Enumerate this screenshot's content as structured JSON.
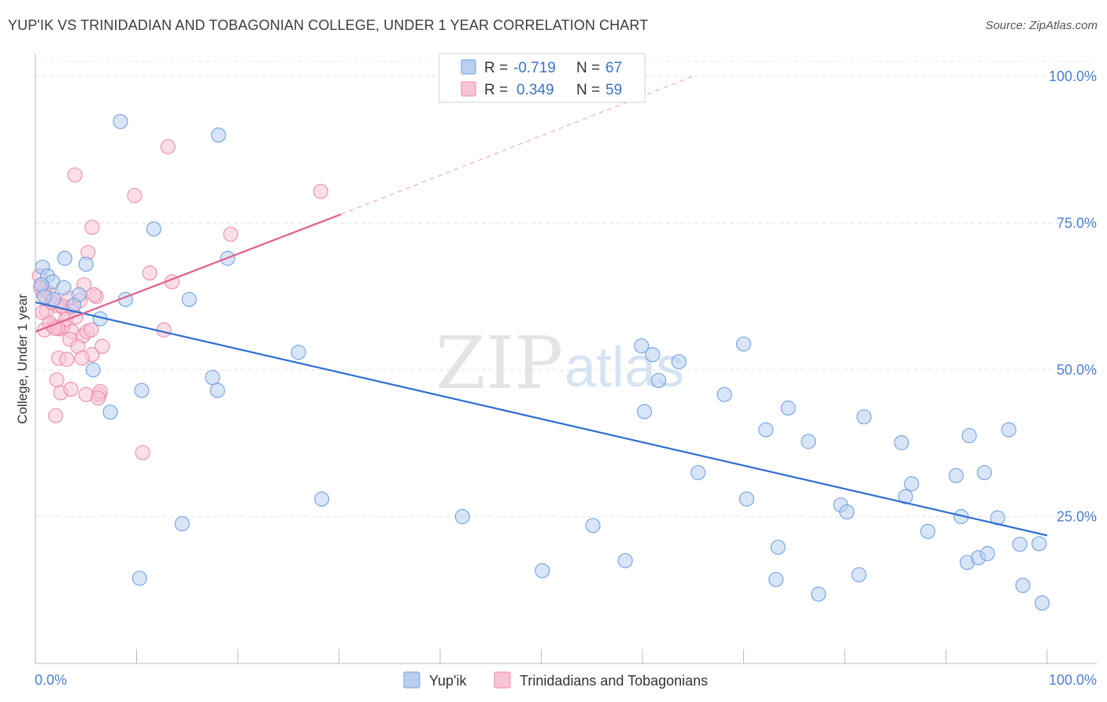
{
  "header": {
    "title": "YUP'IK VS TRINIDADIAN AND TOBAGONIAN COLLEGE, UNDER 1 YEAR CORRELATION CHART",
    "source": "Source: ZipAtlas.com"
  },
  "watermark": {
    "zip": "ZIP",
    "atlas": "atlas"
  },
  "chart_data": {
    "type": "scatter",
    "title": "YUP'IK VS TRINIDADIAN AND TOBAGONIAN COLLEGE, UNDER 1 YEAR CORRELATION CHART",
    "xlabel": "",
    "ylabel": "College, Under 1 year",
    "xlim": [
      0,
      100
    ],
    "ylim": [
      0,
      100
    ],
    "x_tick_labels": [
      "0.0%",
      "100.0%"
    ],
    "y_ticks": [
      25,
      50,
      75,
      100
    ],
    "y_tick_labels": [
      "25.0%",
      "50.0%",
      "75.0%",
      "100.0%"
    ],
    "legend_position": "top-center",
    "series": [
      {
        "name": "Yup'ik",
        "color": "#6f9fe0",
        "fill": "#b8cff0",
        "line_color": "#2f6fd0",
        "r_label": "R =",
        "r_value": "-0.719",
        "n_label": "N =",
        "n_value": "67",
        "trend": {
          "x": [
            0,
            100
          ],
          "y": [
            61.5,
            21.8
          ]
        },
        "points": [
          [
            0.7,
            67.5
          ],
          [
            1.2,
            66
          ],
          [
            1.7,
            65
          ],
          [
            0.6,
            64.5
          ],
          [
            2.9,
            69
          ],
          [
            5,
            68
          ],
          [
            8.4,
            92.3
          ],
          [
            18.1,
            90
          ],
          [
            11.7,
            74
          ],
          [
            19,
            69
          ],
          [
            2.8,
            64
          ],
          [
            4.3,
            62.8
          ],
          [
            1.8,
            62
          ],
          [
            3.8,
            61
          ],
          [
            8.9,
            62
          ],
          [
            15.2,
            62
          ],
          [
            6.4,
            58.7
          ],
          [
            5.7,
            50
          ],
          [
            10.5,
            46.5
          ],
          [
            17.5,
            48.7
          ],
          [
            18,
            46.5
          ],
          [
            7.4,
            42.8
          ],
          [
            26,
            53
          ],
          [
            10.3,
            14.5
          ],
          [
            14.5,
            23.8
          ],
          [
            28.3,
            28
          ],
          [
            42.2,
            25
          ],
          [
            50.1,
            15.8
          ],
          [
            55.1,
            23.5
          ],
          [
            58.3,
            17.5
          ],
          [
            59.9,
            54.1
          ],
          [
            60.2,
            42.9
          ],
          [
            61,
            52.6
          ],
          [
            61.6,
            48.2
          ],
          [
            63.6,
            51.4
          ],
          [
            65.5,
            32.5
          ],
          [
            68.1,
            45.8
          ],
          [
            70,
            54.4
          ],
          [
            70.3,
            28
          ],
          [
            72.2,
            39.8
          ],
          [
            73.2,
            14.3
          ],
          [
            73.4,
            19.8
          ],
          [
            74.4,
            43.5
          ],
          [
            76.4,
            37.8
          ],
          [
            77.4,
            11.8
          ],
          [
            79.6,
            27
          ],
          [
            80.2,
            25.8
          ],
          [
            81.4,
            15.1
          ],
          [
            81.9,
            42
          ],
          [
            85.6,
            37.6
          ],
          [
            86,
            28.4
          ],
          [
            86.6,
            30.6
          ],
          [
            88.2,
            22.5
          ],
          [
            91,
            32
          ],
          [
            91.5,
            25
          ],
          [
            92.1,
            17.2
          ],
          [
            93.2,
            18
          ],
          [
            94.1,
            18.7
          ],
          [
            93.8,
            32.5
          ],
          [
            95.1,
            24.8
          ],
          [
            96.2,
            39.8
          ],
          [
            97.3,
            20.3
          ],
          [
            97.6,
            13.3
          ],
          [
            99.2,
            20.4
          ],
          [
            99.5,
            10.3
          ],
          [
            92.3,
            38.8
          ],
          [
            0.9,
            62.5
          ]
        ]
      },
      {
        "name": "Trinidadians and Tobagonians",
        "color": "#ec8aab",
        "fill": "#f8c4d5",
        "line_color": "#e0608c",
        "r_label": "R =",
        "r_value": "0.349",
        "n_label": "N =",
        "n_value": "59",
        "trend": {
          "x": [
            0,
            30.2
          ],
          "y": [
            56.5,
            76.5
          ]
        },
        "trend_dashed": {
          "x": [
            30.2,
            65
          ],
          "y": [
            76.5,
            100
          ]
        },
        "points": [
          [
            0.4,
            66
          ],
          [
            0.6,
            64.5
          ],
          [
            0.9,
            63.5
          ],
          [
            1.3,
            63.2
          ],
          [
            0.8,
            62.8
          ],
          [
            1.8,
            62
          ],
          [
            2.1,
            61
          ],
          [
            2.8,
            60.5
          ],
          [
            1.1,
            60
          ],
          [
            3.2,
            59.5
          ],
          [
            1.7,
            57.5
          ],
          [
            2.4,
            57
          ],
          [
            0.9,
            56.8
          ],
          [
            3.6,
            56.5
          ],
          [
            4.7,
            55.8
          ],
          [
            5.1,
            56.5
          ],
          [
            5.5,
            56.8
          ],
          [
            3.4,
            55.2
          ],
          [
            4.2,
            54
          ],
          [
            2.3,
            52
          ],
          [
            3.1,
            51.8
          ],
          [
            6.6,
            54
          ],
          [
            5.6,
            52.6
          ],
          [
            4.6,
            52
          ],
          [
            2.1,
            48.3
          ],
          [
            2.5,
            46.1
          ],
          [
            3.5,
            46.7
          ],
          [
            5,
            45.8
          ],
          [
            6.3,
            45.8
          ],
          [
            6.4,
            46.3
          ],
          [
            2,
            42.2
          ],
          [
            3.9,
            83.2
          ],
          [
            13.1,
            88
          ],
          [
            9.8,
            79.7
          ],
          [
            5.6,
            74.3
          ],
          [
            19.3,
            73.1
          ],
          [
            5.2,
            70
          ],
          [
            11.3,
            66.5
          ],
          [
            13.5,
            65
          ],
          [
            12.7,
            56.8
          ],
          [
            28.2,
            80.4
          ],
          [
            4.8,
            64.5
          ],
          [
            3.6,
            60.8
          ],
          [
            6,
            62.5
          ],
          [
            1.4,
            58
          ],
          [
            2.7,
            57.4
          ],
          [
            3,
            58.6
          ],
          [
            10.6,
            35.9
          ],
          [
            0.5,
            64
          ],
          [
            1.6,
            61.5
          ],
          [
            4,
            59
          ],
          [
            2.2,
            57.2
          ],
          [
            5.8,
            62.8
          ],
          [
            3.3,
            62.2
          ],
          [
            0.7,
            59.8
          ],
          [
            1.9,
            57.1
          ],
          [
            6.2,
            45.2
          ],
          [
            4.4,
            61.8
          ],
          [
            2.6,
            60.9
          ]
        ]
      }
    ]
  }
}
